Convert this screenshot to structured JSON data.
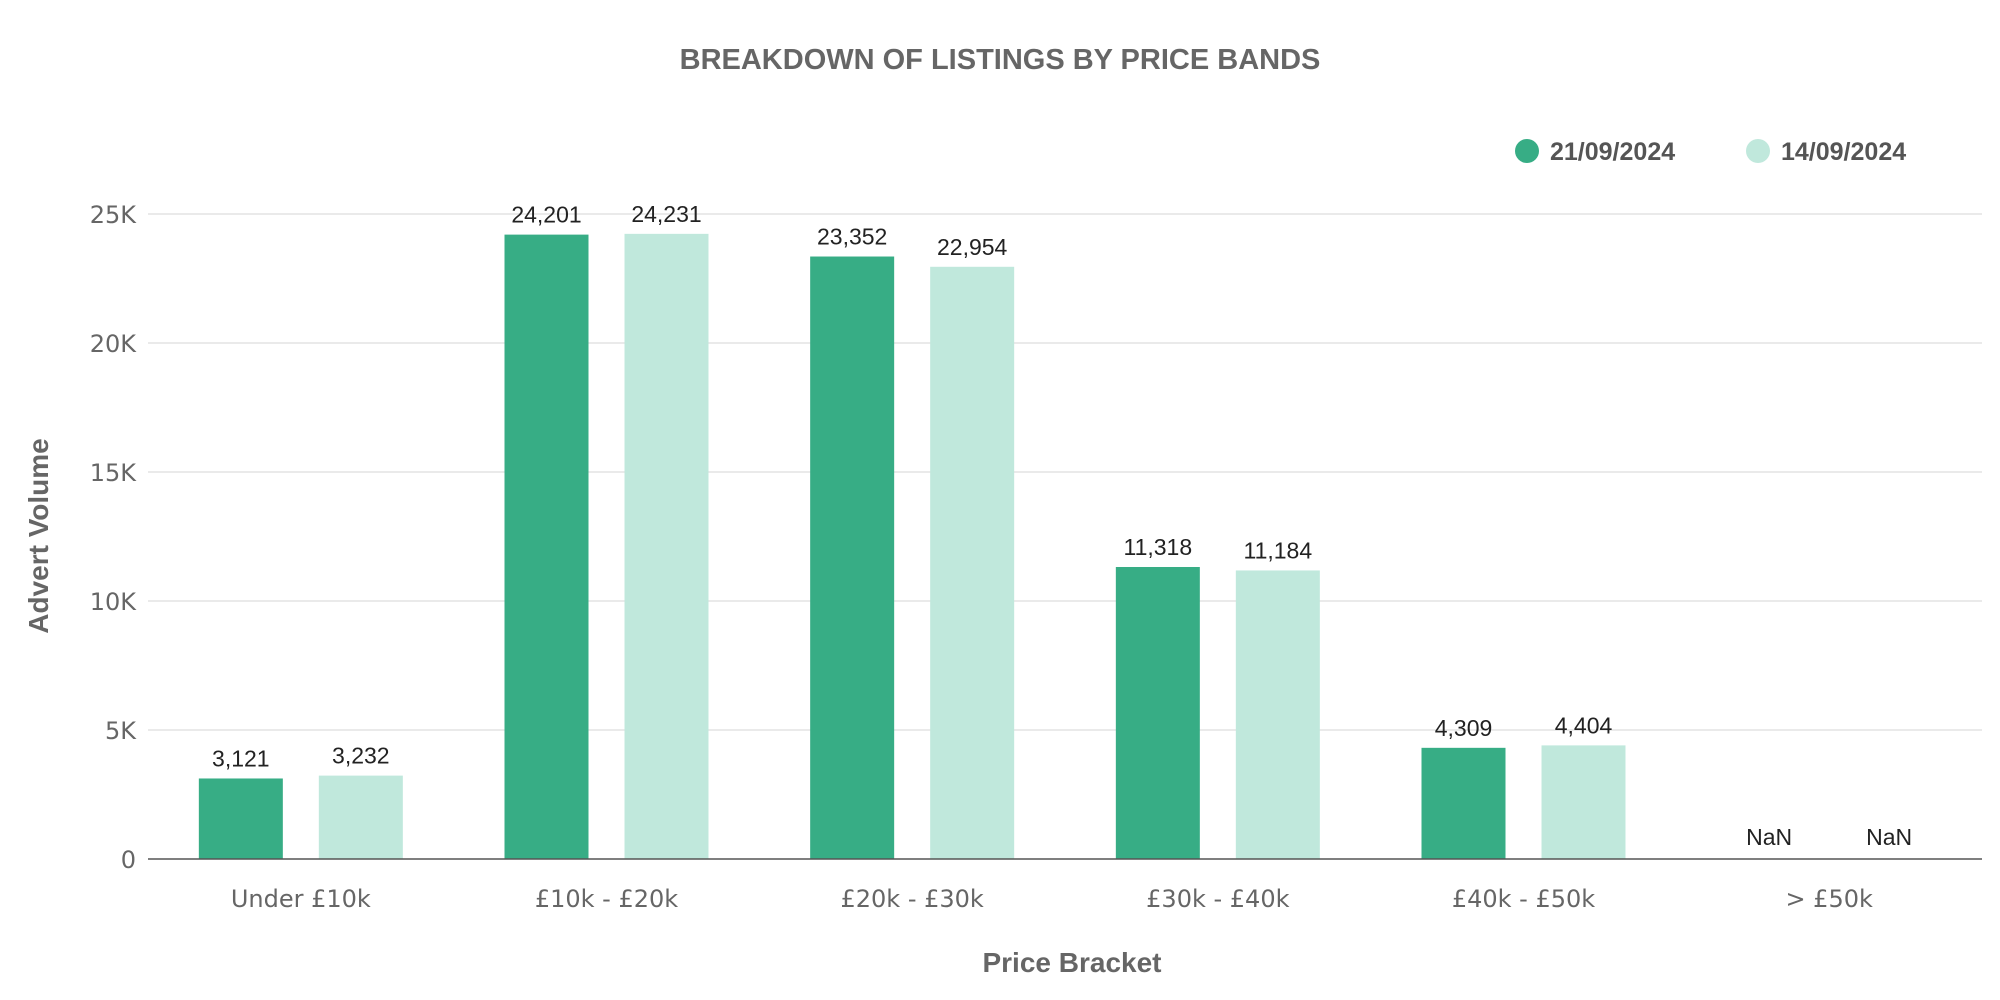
{
  "chart_data": {
    "type": "bar",
    "title": "BREAKDOWN OF LISTINGS BY PRICE BANDS",
    "xlabel": "Price Bracket",
    "ylabel": "Advert Volume",
    "categories": [
      "Under £10k",
      "£10k - £20k",
      "£20k - £30k",
      "£30k - £40k",
      "£40k - £50k",
      "> £50k"
    ],
    "series": [
      {
        "name": "21/09/2024",
        "color": "#37ad85",
        "values": [
          3121,
          24201,
          23352,
          11318,
          4309,
          null
        ],
        "labels": [
          "3,121",
          "24,201",
          "23,352",
          "11,318",
          "4,309",
          "NaN"
        ]
      },
      {
        "name": "14/09/2024",
        "color": "#c0e8dc",
        "values": [
          3232,
          24231,
          22954,
          11184,
          4404,
          null
        ],
        "labels": [
          "3,232",
          "24,231",
          "22,954",
          "11,184",
          "4,404",
          "NaN"
        ]
      }
    ],
    "ylim": [
      0,
      25000
    ],
    "yticks": [
      0,
      5000,
      10000,
      15000,
      20000,
      25000
    ],
    "ytick_labels": [
      "0",
      "5K",
      "10K",
      "15K",
      "20K",
      "25K"
    ],
    "grid": true,
    "legend_position": "top-right"
  }
}
